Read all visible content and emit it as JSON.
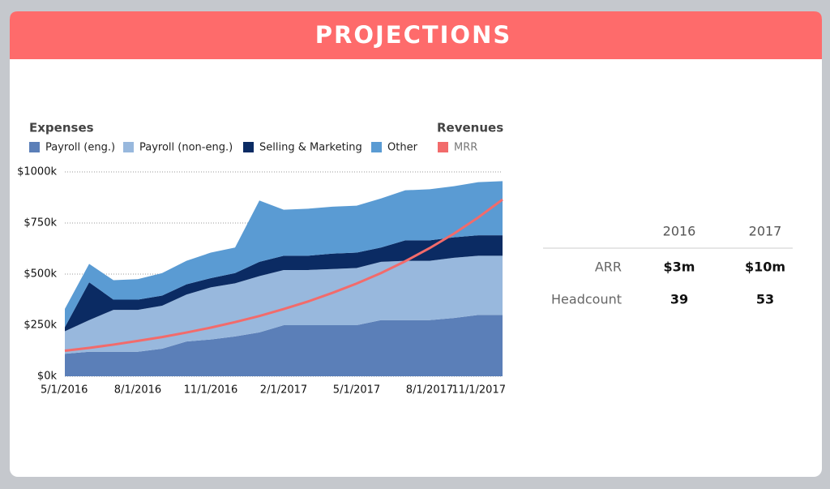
{
  "header": {
    "title": "PROJECTIONS"
  },
  "chart_data": {
    "type": "stacked-area",
    "legend_groups": [
      "Expenses",
      "Revenues"
    ],
    "x": [
      "5/1/2016",
      "6/1/2016",
      "7/1/2016",
      "8/1/2016",
      "9/1/2016",
      "10/1/2016",
      "11/1/2016",
      "12/1/2016",
      "1/1/2017",
      "2/1/2017",
      "3/1/2017",
      "4/1/2017",
      "5/1/2017",
      "6/1/2017",
      "7/1/2017",
      "8/1/2017",
      "9/1/2017",
      "10/1/2017",
      "11/1/2017"
    ],
    "xtick_indices": [
      0,
      3,
      6,
      9,
      12,
      15,
      18
    ],
    "series": [
      {
        "name": "Payroll (eng.)",
        "color": "#5b7fb8",
        "values": [
          110,
          120,
          120,
          120,
          135,
          170,
          180,
          195,
          215,
          250,
          250,
          250,
          250,
          275,
          275,
          275,
          285,
          300,
          300
        ]
      },
      {
        "name": "Payroll (non-eng.)",
        "color": "#98b8dd",
        "values": [
          110,
          155,
          205,
          205,
          210,
          230,
          255,
          260,
          275,
          270,
          270,
          275,
          280,
          285,
          290,
          290,
          295,
          290,
          290
        ]
      },
      {
        "name": "Selling & Marketing",
        "color": "#0b2b63",
        "values": [
          20,
          185,
          50,
          50,
          50,
          50,
          45,
          50,
          70,
          70,
          70,
          75,
          75,
          70,
          100,
          100,
          100,
          100,
          100
        ]
      },
      {
        "name": "Other",
        "color": "#5a9bd3",
        "values": [
          90,
          90,
          95,
          100,
          110,
          115,
          125,
          125,
          300,
          225,
          230,
          230,
          230,
          240,
          245,
          250,
          250,
          260,
          265
        ]
      },
      {
        "name": "MRR",
        "color": "#f26b6b",
        "type": "line",
        "group": 1,
        "values": [
          125,
          139,
          155,
          173,
          192,
          214,
          238,
          265,
          295,
          329,
          366,
          408,
          454,
          505,
          563,
          627,
          698,
          777,
          865
        ]
      }
    ],
    "ylim": [
      0,
      1000
    ],
    "yticks": [
      {
        "value": 0,
        "label": "$0k"
      },
      {
        "value": 250,
        "label": "$250k"
      },
      {
        "value": 500,
        "label": "$500k"
      },
      {
        "value": 750,
        "label": "$750k"
      },
      {
        "value": 1000,
        "label": "$1000k"
      }
    ],
    "grid": true
  },
  "table": {
    "columns": [
      "2016",
      "2017"
    ],
    "rows": [
      [
        "ARR",
        "$3m",
        "$10m"
      ],
      [
        "Headcount",
        39,
        53
      ]
    ]
  }
}
